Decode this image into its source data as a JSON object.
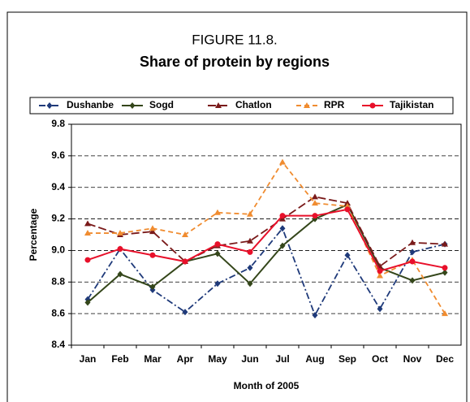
{
  "chart_data": {
    "type": "line",
    "title": "FIGURE 11.8.",
    "subtitle": "Share of protein by regions",
    "x_label": "Month of 2005",
    "y_label": "Percentage",
    "categories": [
      "Jan",
      "Feb",
      "Mar",
      "Apr",
      "May",
      "Jun",
      "Jul",
      "Aug",
      "Sep",
      "Oct",
      "Nov",
      "Dec"
    ],
    "series": [
      {
        "name": "Dushanbe",
        "color": "#1f3a7a",
        "dash": "dash-dot",
        "marker": "diamond",
        "values": [
          8.69,
          9.01,
          8.75,
          8.61,
          8.79,
          8.89,
          9.14,
          8.59,
          8.97,
          8.63,
          8.99,
          9.04
        ]
      },
      {
        "name": "Sogd",
        "color": "#34461a",
        "dash": "solid",
        "marker": "diamond",
        "values": [
          8.67,
          8.85,
          8.77,
          8.93,
          8.98,
          8.79,
          9.03,
          9.2,
          9.29,
          8.89,
          8.81,
          8.86
        ]
      },
      {
        "name": "Chatlon",
        "color": "#7a1a1a",
        "dash": "long-dash",
        "marker": "triangle",
        "values": [
          9.17,
          9.1,
          9.12,
          8.93,
          9.03,
          9.06,
          9.2,
          9.34,
          9.3,
          8.9,
          9.05,
          9.04
        ]
      },
      {
        "name": "RPR",
        "color": "#f08c30",
        "dash": "dash",
        "marker": "triangle",
        "values": [
          9.11,
          9.11,
          9.14,
          9.1,
          9.24,
          9.23,
          9.56,
          9.3,
          9.28,
          8.84,
          8.94,
          8.6
        ]
      },
      {
        "name": "Tajikistan",
        "color": "#e8102a",
        "dash": "solid",
        "marker": "circle",
        "values": [
          8.94,
          9.01,
          8.97,
          8.93,
          9.04,
          8.99,
          9.22,
          9.22,
          9.26,
          8.87,
          8.93,
          8.89
        ]
      }
    ],
    "ylim": [
      8.4,
      9.8
    ],
    "yticks": [
      8.4,
      8.6,
      8.8,
      {
        "value": 9,
        "label": "9.0"
      },
      9.2,
      9.4,
      9.6,
      9.8
    ],
    "grid": true,
    "legend": "top"
  }
}
